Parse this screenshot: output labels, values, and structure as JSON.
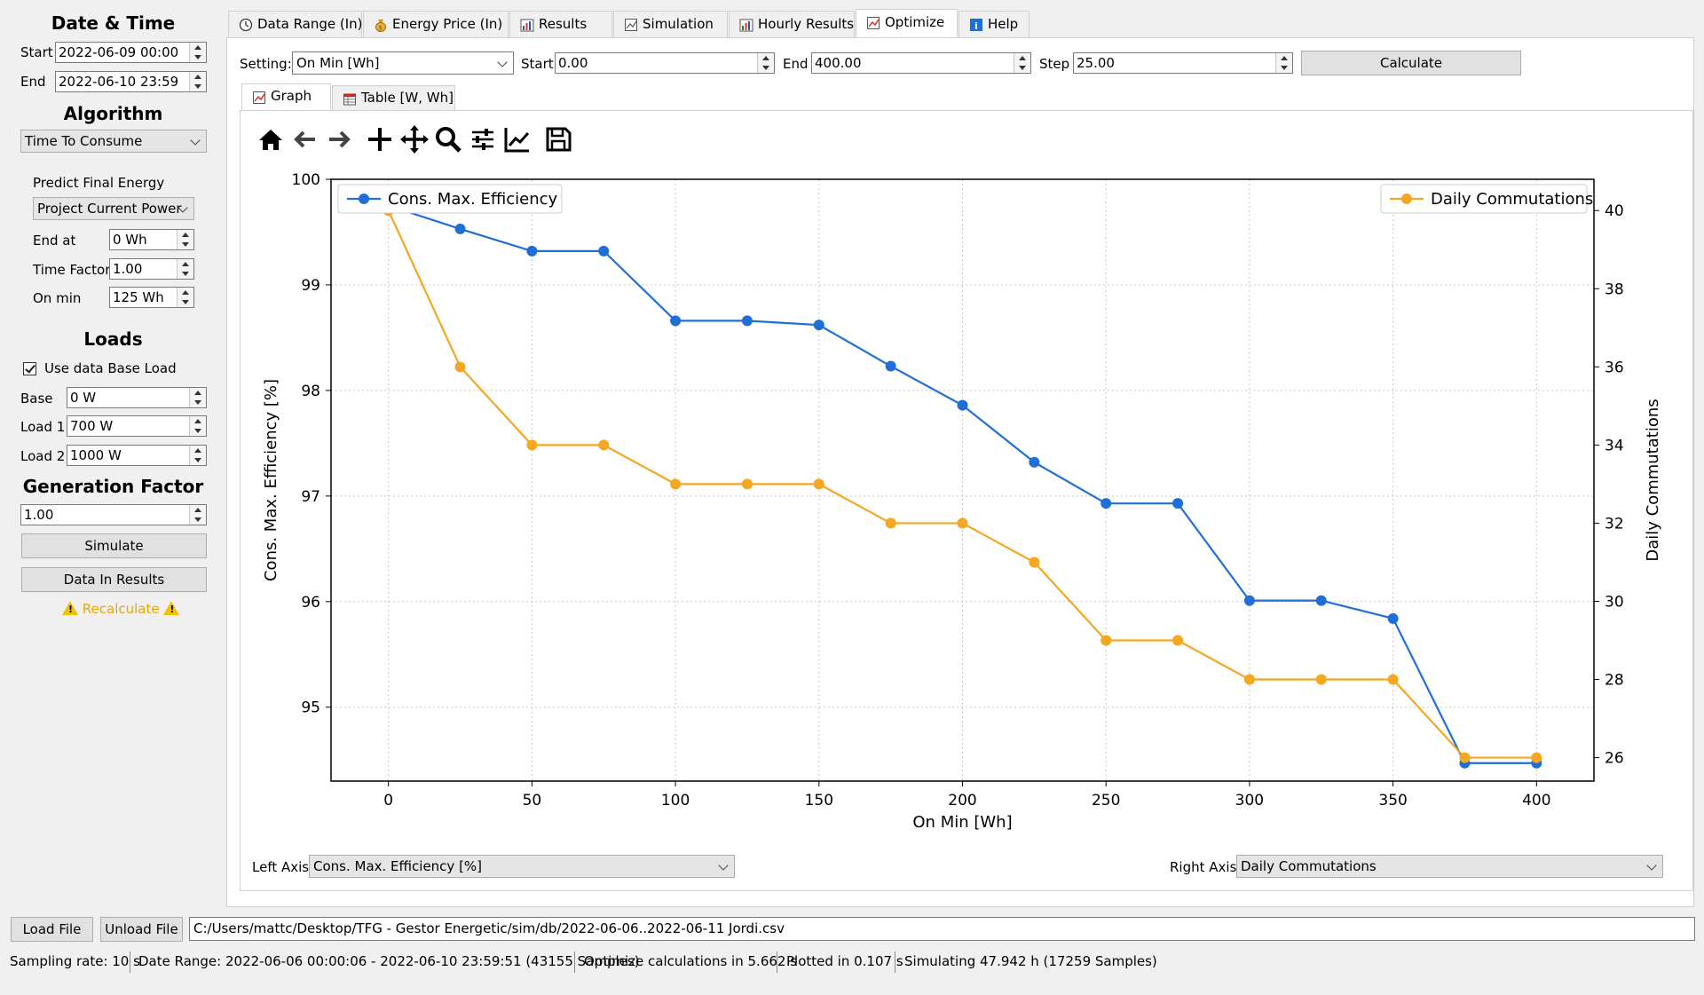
{
  "sidebar": {
    "datetime": {
      "title": "Date & Time",
      "start_label": "Start",
      "start_value": "2022-06-09 00:00",
      "end_label": "End",
      "end_value": "2022-06-10 23:59"
    },
    "algorithm": {
      "title": "Algorithm",
      "selected": "Time To Consume",
      "predict_label": "Predict Final Energy",
      "predict_selected": "Project Current Power",
      "end_at_label": "End at",
      "end_at_value": "0 Wh",
      "time_factor_label": "Time Factor",
      "time_factor_value": "1.00",
      "on_min_label": "On min",
      "on_min_value": "125 Wh"
    },
    "loads": {
      "title": "Loads",
      "use_base_label": "Use data Base Load",
      "use_base_checked": true,
      "base_label": "Base",
      "base_value": "0 W",
      "load1_label": "Load 1",
      "load1_value": "700 W",
      "load2_label": "Load 2",
      "load2_value": "1000 W"
    },
    "generation": {
      "title": "Generation Factor",
      "value": "1.00",
      "simulate_label": "Simulate",
      "data_in_results_label": "Data In Results",
      "recalculate_label": "Recalculate"
    }
  },
  "tabs": [
    {
      "label": "Data Range (In)",
      "icon": "clock-icon"
    },
    {
      "label": "Energy Price (In)",
      "icon": "money-bag-icon"
    },
    {
      "label": "Results",
      "icon": "bar-chart-icon"
    },
    {
      "label": "Simulation",
      "icon": "chart-icon"
    },
    {
      "label": "Hourly Results",
      "icon": "bar-chart-icon"
    },
    {
      "label": "Optimize",
      "icon": "line-chart-icon",
      "active": true
    },
    {
      "label": "Help",
      "icon": "info-icon"
    }
  ],
  "optimize": {
    "setting_label": "Setting:",
    "setting_value": "On Min [Wh]",
    "start_label": "Start",
    "start_value": "0.00",
    "end_label": "End",
    "end_value": "400.00",
    "step_label": "Step",
    "step_value": "25.00",
    "calculate_label": "Calculate",
    "subtabs": [
      {
        "label": "Graph",
        "icon": "line-chart-icon",
        "active": true
      },
      {
        "label": "Table [W, Wh]",
        "icon": "table-icon"
      }
    ],
    "left_axis_label": "Left Axis",
    "left_axis_value": "Cons. Max. Efficiency [%]",
    "right_axis_label": "Right Axis",
    "right_axis_value": "Daily Commutations"
  },
  "toolbar": [
    "home-icon",
    "back-icon",
    "forward-icon",
    "plus-icon",
    "pan-icon",
    "zoom-icon",
    "sliders-icon",
    "axis-edit-icon",
    "save-icon"
  ],
  "chart_data": {
    "type": "line",
    "xlabel": "On Min [Wh]",
    "ylabel": "Cons. Max. Efficiency [%]",
    "y2label": "Daily Commutations",
    "x": [
      0,
      25,
      50,
      75,
      100,
      125,
      150,
      175,
      200,
      225,
      250,
      275,
      300,
      325,
      350,
      375,
      400
    ],
    "xlim": [
      -20,
      420
    ],
    "ylim": [
      94.3,
      100
    ],
    "y2lim": [
      25.4,
      40.8
    ],
    "xticks": [
      0,
      50,
      100,
      150,
      200,
      250,
      300,
      350,
      400
    ],
    "yticks": [
      95,
      96,
      97,
      98,
      99,
      100
    ],
    "y2ticks": [
      26,
      28,
      30,
      32,
      34,
      36,
      38,
      40
    ],
    "grid": true,
    "series": [
      {
        "name": "Cons. Max. Efficiency",
        "axis": "left",
        "color": "#1f6fd6",
        "legend": "top-left",
        "values": [
          99.75,
          99.53,
          99.32,
          99.32,
          98.66,
          98.66,
          98.62,
          98.23,
          97.86,
          97.32,
          96.93,
          96.93,
          96.01,
          96.01,
          95.84,
          94.47,
          94.47
        ]
      },
      {
        "name": "Daily Commutations",
        "axis": "right",
        "color": "#f5a623",
        "legend": "top-right",
        "values": [
          40,
          36,
          34,
          34,
          33,
          33,
          33,
          32,
          32,
          31,
          29,
          29,
          28,
          28,
          28,
          26,
          26
        ]
      }
    ]
  },
  "bottom": {
    "load_file_label": "Load File",
    "unload_file_label": "Unload File",
    "file_path": "C:/Users/mattc/Desktop/TFG - Gestor Energetic/sim/db/2022-06-06..2022-06-11 Jordi.csv"
  },
  "status": {
    "sampling": "Sampling rate: 10 s",
    "date_range": "Date Range: 2022-06-06 00:00:06 - 2022-06-10 23:59:51 (43155 Samples)",
    "optimize": "Optimize calculations in 5.662 s",
    "plotted": "Plotted in 0.107 s",
    "simulating": "Simulating 47.942 h (17259 Samples)"
  }
}
